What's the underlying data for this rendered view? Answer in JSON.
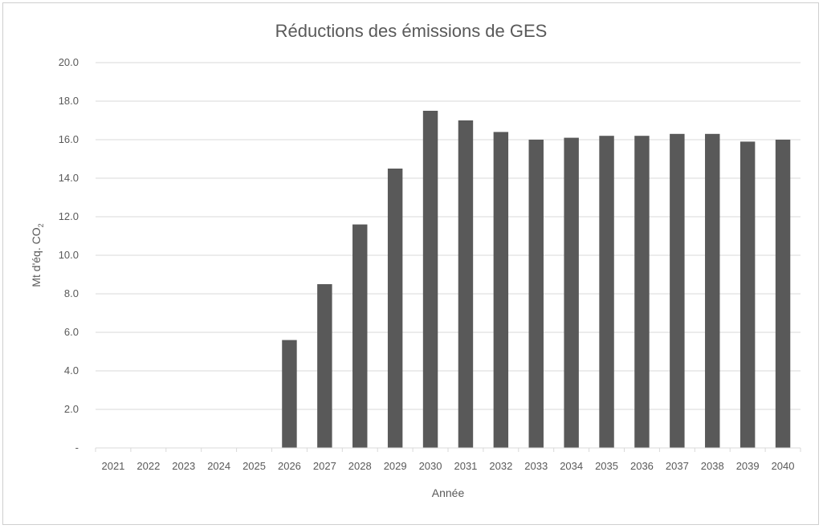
{
  "chart_data": {
    "type": "bar",
    "title": "Réductions des émissions de GES",
    "xlabel": "Année",
    "ylabel_main": "Mt d'éq. CO",
    "ylabel_sub": "2",
    "categories": [
      "2021",
      "2022",
      "2023",
      "2024",
      "2025",
      "2026",
      "2027",
      "2028",
      "2029",
      "2030",
      "2031",
      "2032",
      "2033",
      "2034",
      "2035",
      "2036",
      "2037",
      "2038",
      "2039",
      "2040"
    ],
    "values": [
      0,
      0,
      0,
      0,
      0,
      5.6,
      8.5,
      11.6,
      14.5,
      17.5,
      17.0,
      16.4,
      16.0,
      16.1,
      16.2,
      16.2,
      16.3,
      16.3,
      15.9,
      16.0
    ],
    "ylim": [
      0,
      20
    ],
    "yticks": [
      0,
      2,
      4,
      6,
      8,
      10,
      12,
      14,
      16,
      18,
      20
    ],
    "ytick_labels": [
      "-",
      "2.0",
      "4.0",
      "6.0",
      "8.0",
      "10.0",
      "12.0",
      "14.0",
      "16.0",
      "18.0",
      "20.0"
    ],
    "grid": true,
    "legend": "none",
    "bar_color": "#595959",
    "grid_color": "#d9d9d9"
  }
}
